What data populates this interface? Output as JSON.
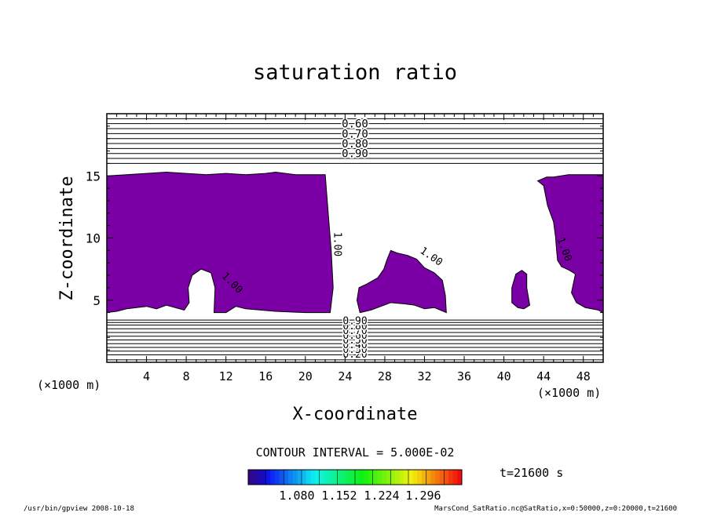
{
  "chart_data": {
    "type": "contour",
    "title": "saturation ratio",
    "xlabel": "X-coordinate",
    "ylabel": "Z-coordinate",
    "x_unit": "(×1000 m)",
    "y_unit": "(×1000 m)",
    "xlim": [
      0,
      50
    ],
    "ylim": [
      0,
      20
    ],
    "x_ticks": [
      4,
      8,
      12,
      16,
      20,
      24,
      28,
      32,
      36,
      40,
      44,
      48
    ],
    "y_ticks": [
      5,
      10,
      15
    ],
    "contour_labels_upper": [
      "0.60",
      "0.70",
      "0.80",
      "0.90"
    ],
    "contour_labels_lower": [
      "0.20",
      "0.30",
      "0.40",
      "0.50",
      "0.60",
      "0.70",
      "0.80",
      "0.90"
    ],
    "contour_label_cloud": "1.00",
    "contour_interval_text": "CONTOUR INTERVAL = 5.000E-02",
    "colorbar_ticks": [
      "1.080",
      "1.152",
      "1.224",
      "1.296"
    ],
    "fill_color": "#7a00a6",
    "time_label": "t=21600 s",
    "footer_left": "/usr/bin/gpview   2008-10-18",
    "footer_right": "MarsCond_SatRatio.nc@SatRatio,x=0:50000,z=0:20000,t=21600",
    "upper_isolines_z": [
      16.0,
      16.4,
      16.8,
      17.2,
      17.6,
      18.0,
      18.4,
      18.8,
      19.2,
      19.6,
      20.0
    ],
    "lower_isolines_z": [
      0.2,
      0.6,
      0.9,
      1.2,
      1.5,
      1.8,
      2.1,
      2.4,
      2.7,
      3.0,
      3.2,
      3.4
    ],
    "supersaturated_regions": [
      [
        [
          0,
          4
        ],
        [
          0,
          15
        ],
        [
          2,
          15.1
        ],
        [
          4,
          15.2
        ],
        [
          6,
          15.3
        ],
        [
          8,
          15.2
        ],
        [
          10,
          15.1
        ],
        [
          12,
          15.2
        ],
        [
          14,
          15.1
        ],
        [
          16,
          15.2
        ],
        [
          17,
          15.3
        ],
        [
          19,
          15.1
        ],
        [
          22,
          15.1
        ],
        [
          22.3,
          12
        ],
        [
          22.6,
          9
        ],
        [
          22.8,
          6
        ],
        [
          22.5,
          4
        ],
        [
          20,
          4
        ],
        [
          17,
          4.1
        ],
        [
          14,
          4.3
        ],
        [
          13,
          4.5
        ],
        [
          12,
          4
        ],
        [
          10.8,
          4
        ],
        [
          10.9,
          6
        ],
        [
          10.5,
          7.2
        ],
        [
          9.5,
          7.5
        ],
        [
          8.6,
          7
        ],
        [
          8.2,
          6
        ],
        [
          8.3,
          4.8
        ],
        [
          7.8,
          4.2
        ],
        [
          6,
          4.6
        ],
        [
          5,
          4.3
        ],
        [
          4,
          4.5
        ],
        [
          2,
          4.3
        ],
        [
          1,
          4.1
        ]
      ],
      [
        [
          25.5,
          4
        ],
        [
          25.2,
          5
        ],
        [
          25.4,
          6
        ],
        [
          26.2,
          6.3
        ],
        [
          27.3,
          6.8
        ],
        [
          27.9,
          7.5
        ],
        [
          28.2,
          8.2
        ],
        [
          28.6,
          9
        ],
        [
          29.2,
          8.8
        ],
        [
          30.3,
          8.6
        ],
        [
          31.2,
          8.3
        ],
        [
          32,
          7.6
        ],
        [
          33,
          7.2
        ],
        [
          33.8,
          6.6
        ],
        [
          34.1,
          5.4
        ],
        [
          34.2,
          4
        ],
        [
          33,
          4.4
        ],
        [
          32,
          4.3
        ],
        [
          31,
          4.6
        ],
        [
          30,
          4.7
        ],
        [
          28.6,
          4.8
        ],
        [
          27.6,
          4.5
        ],
        [
          26.6,
          4.2
        ]
      ],
      [
        [
          42.6,
          4.6
        ],
        [
          42.3,
          6
        ],
        [
          42.3,
          7.1
        ],
        [
          41.8,
          7.4
        ],
        [
          41.2,
          7.1
        ],
        [
          40.8,
          6
        ],
        [
          40.8,
          4.8
        ],
        [
          41.4,
          4.4
        ],
        [
          42,
          4.3
        ]
      ],
      [
        [
          44.3,
          14.9
        ],
        [
          45,
          14.9
        ],
        [
          46.5,
          15.1
        ],
        [
          48,
          15.1
        ],
        [
          50,
          15.1
        ],
        [
          50,
          4
        ],
        [
          49.5,
          4.2
        ],
        [
          48.2,
          4.4
        ],
        [
          47.3,
          4.8
        ],
        [
          46.8,
          5.6
        ],
        [
          47.2,
          7.1
        ],
        [
          46.6,
          7.4
        ],
        [
          45.8,
          7.7
        ],
        [
          45.4,
          8.2
        ],
        [
          45.3,
          9.1
        ],
        [
          45.2,
          10.1
        ],
        [
          45,
          11.3
        ],
        [
          44.4,
          12.6
        ],
        [
          44.2,
          13.4
        ],
        [
          44,
          14.2
        ],
        [
          43.4,
          14.6
        ]
      ]
    ]
  }
}
